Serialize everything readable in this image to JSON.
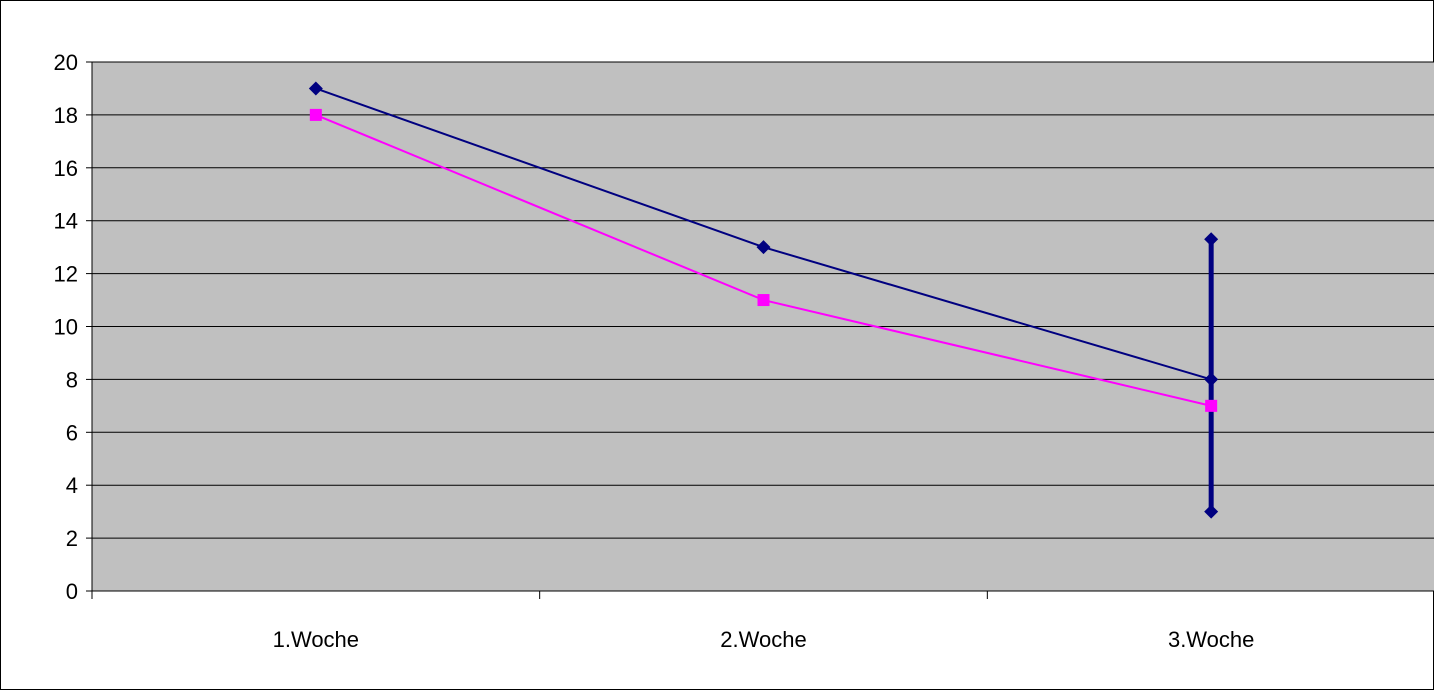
{
  "chart_data": {
    "type": "line",
    "title": "",
    "xlabel": "",
    "ylabel": "",
    "categories": [
      "1.Woche",
      "2.Woche",
      "3.Woche"
    ],
    "ylim": [
      0,
      20
    ],
    "y_ticks": [
      "0",
      "2",
      "4",
      "6",
      "8",
      "10",
      "12",
      "14",
      "16",
      "18",
      "20"
    ],
    "grid": true,
    "legend": "none",
    "plot_background": "#c0c0c0",
    "series": [
      {
        "color": "#000080",
        "marker": "diamond",
        "values": [
          19,
          13,
          8
        ],
        "error_bar": {
          "category": "3.Woche",
          "low": 3,
          "high": 13.3
        }
      },
      {
        "color": "#ff00ff",
        "marker": "square",
        "values": [
          18,
          11,
          7
        ]
      }
    ]
  }
}
